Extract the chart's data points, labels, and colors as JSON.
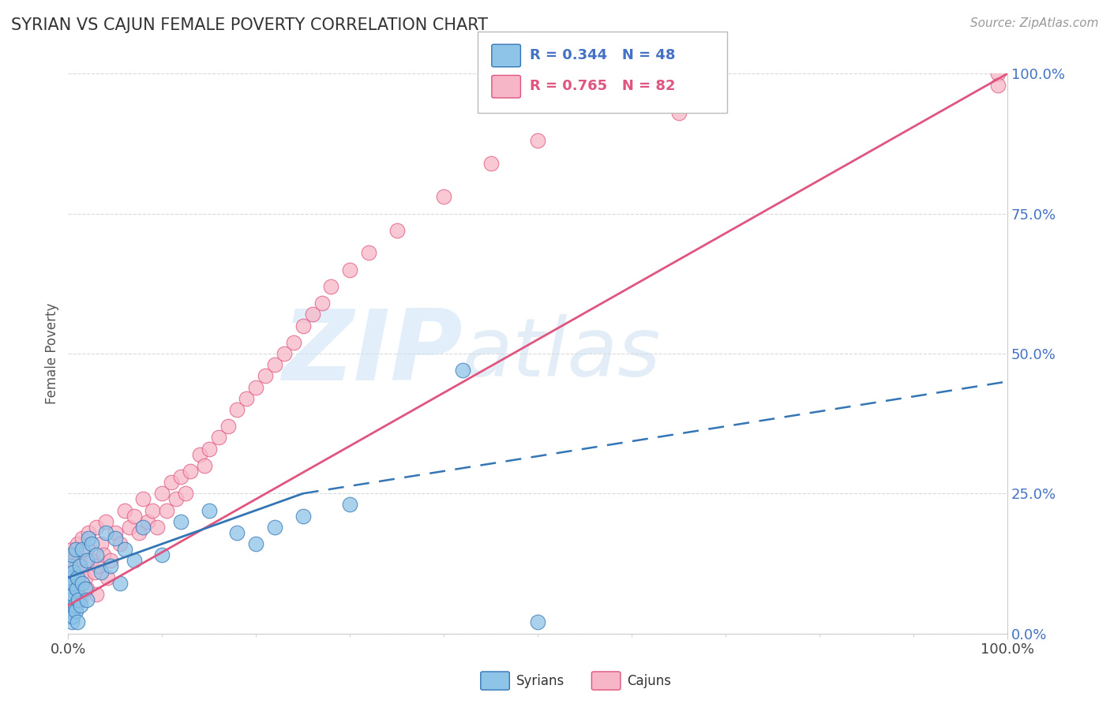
{
  "title": "SYRIAN VS CAJUN FEMALE POVERTY CORRELATION CHART",
  "source_text": "Source: ZipAtlas.com",
  "ylabel": "Female Poverty",
  "xlim": [
    0.0,
    100.0
  ],
  "ylim": [
    0.0,
    100.0
  ],
  "ytick_positions": [
    0.0,
    25.0,
    50.0,
    75.0,
    100.0
  ],
  "ytick_labels": [
    "0.0%",
    "25.0%",
    "50.0%",
    "75.0%",
    "100.0%"
  ],
  "xtick_positions": [
    0.0,
    100.0
  ],
  "xtick_labels": [
    "0.0%",
    "100.0%"
  ],
  "minor_xticks": [
    10,
    20,
    30,
    40,
    50,
    60,
    70,
    80,
    90
  ],
  "legend_R_syrians": "R = 0.344",
  "legend_N_syrians": "N = 48",
  "legend_R_cajuns": "R = 0.765",
  "legend_N_cajuns": "N = 82",
  "legend_label_syrians": "Syrians",
  "legend_label_cajuns": "Cajuns",
  "color_syrians": "#8ec4e8",
  "color_cajuns": "#f7b6c8",
  "color_syrians_line": "#3475b5",
  "color_cajuns_line": "#e05580",
  "color_legend_text": "#4472c4",
  "color_cajuns_legend_text": "#e05580",
  "watermark_ZIP": "ZIP",
  "watermark_atlas": "atlas",
  "watermark_color_ZIP": "#d0e4f5",
  "watermark_color_atlas": "#c8ddf0",
  "background_color": "#ffffff",
  "grid_color": "#d0d0d0",
  "title_color": "#333333",
  "source_color": "#999999",
  "syrians_x": [
    0.1,
    0.15,
    0.2,
    0.2,
    0.25,
    0.3,
    0.35,
    0.4,
    0.4,
    0.45,
    0.5,
    0.5,
    0.6,
    0.7,
    0.8,
    0.8,
    0.9,
    1.0,
    1.0,
    1.1,
    1.2,
    1.3,
    1.5,
    1.5,
    1.8,
    2.0,
    2.0,
    2.2,
    2.5,
    3.0,
    3.5,
    4.0,
    4.5,
    5.0,
    5.5,
    6.0,
    7.0,
    8.0,
    10.0,
    12.0,
    15.0,
    18.0,
    20.0,
    22.0,
    25.0,
    30.0,
    42.0,
    50.0
  ],
  "syrians_y": [
    5.0,
    3.0,
    12.0,
    4.0,
    8.0,
    6.0,
    10.0,
    14.0,
    2.0,
    7.0,
    9.0,
    3.0,
    11.0,
    5.0,
    15.0,
    4.0,
    8.0,
    10.0,
    2.0,
    6.0,
    12.0,
    5.0,
    9.0,
    15.0,
    8.0,
    13.0,
    6.0,
    17.0,
    16.0,
    14.0,
    11.0,
    18.0,
    12.0,
    17.0,
    9.0,
    15.0,
    13.0,
    19.0,
    14.0,
    20.0,
    22.0,
    18.0,
    16.0,
    19.0,
    21.0,
    23.0,
    47.0,
    2.0
  ],
  "cajuns_x": [
    0.1,
    0.15,
    0.2,
    0.2,
    0.25,
    0.3,
    0.3,
    0.35,
    0.4,
    0.4,
    0.45,
    0.5,
    0.5,
    0.6,
    0.6,
    0.7,
    0.8,
    0.8,
    0.9,
    1.0,
    1.0,
    1.1,
    1.2,
    1.3,
    1.5,
    1.5,
    1.8,
    2.0,
    2.0,
    2.2,
    2.5,
    2.8,
    3.0,
    3.0,
    3.2,
    3.5,
    3.8,
    4.0,
    4.2,
    4.5,
    5.0,
    5.5,
    6.0,
    6.5,
    7.0,
    7.5,
    8.0,
    8.5,
    9.0,
    9.5,
    10.0,
    10.5,
    11.0,
    11.5,
    12.0,
    12.5,
    13.0,
    14.0,
    14.5,
    15.0,
    16.0,
    17.0,
    18.0,
    19.0,
    20.0,
    21.0,
    22.0,
    23.0,
    24.0,
    25.0,
    26.0,
    27.0,
    28.0,
    30.0,
    32.0,
    35.0,
    40.0,
    45.0,
    50.0,
    65.0,
    99.0,
    99.0
  ],
  "cajuns_y": [
    8.0,
    5.0,
    12.0,
    6.0,
    10.0,
    4.0,
    14.0,
    7.0,
    9.0,
    15.0,
    6.0,
    11.0,
    3.0,
    13.0,
    8.0,
    10.0,
    14.0,
    5.0,
    12.0,
    16.0,
    7.0,
    9.0,
    13.0,
    6.0,
    11.0,
    17.0,
    10.0,
    15.0,
    8.0,
    18.0,
    13.0,
    11.0,
    19.0,
    7.0,
    12.0,
    16.0,
    14.0,
    20.0,
    10.0,
    13.0,
    18.0,
    16.0,
    22.0,
    19.0,
    21.0,
    18.0,
    24.0,
    20.0,
    22.0,
    19.0,
    25.0,
    22.0,
    27.0,
    24.0,
    28.0,
    25.0,
    29.0,
    32.0,
    30.0,
    33.0,
    35.0,
    37.0,
    40.0,
    42.0,
    44.0,
    46.0,
    48.0,
    50.0,
    52.0,
    55.0,
    57.0,
    59.0,
    62.0,
    65.0,
    68.0,
    72.0,
    78.0,
    84.0,
    88.0,
    93.0,
    100.0,
    98.0
  ],
  "cajun_line_x0": 0.0,
  "cajun_line_y0": 5.0,
  "cajun_line_x1": 100.0,
  "cajun_line_y1": 100.0,
  "syrian_solid_x0": 0.0,
  "syrian_solid_y0": 10.0,
  "syrian_solid_x1": 25.0,
  "syrian_solid_y1": 25.0,
  "syrian_dashed_x0": 25.0,
  "syrian_dashed_y0": 25.0,
  "syrian_dashed_x1": 100.0,
  "syrian_dashed_y1": 45.0
}
